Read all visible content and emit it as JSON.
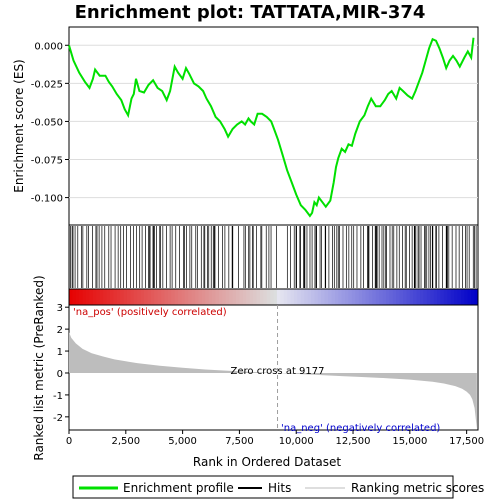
{
  "chart_data": {
    "type": "line",
    "title": "Enrichment plot: TATTATA,MIR-374",
    "xlabel": "Rank in Ordered Dataset",
    "ylabel_top": "Enrichment score (ES)",
    "ylabel_bottom": "Ranked list metric (PreRanked)",
    "xlim": [
      0,
      18000
    ],
    "x_ticks": [
      0,
      2500,
      5000,
      7500,
      10000,
      12500,
      15000,
      17500
    ],
    "x_tick_labels": [
      "0",
      "2,500",
      "5,000",
      "7,500",
      "10,000",
      "12,500",
      "15,000",
      "17,500"
    ],
    "es_ylim": [
      -0.118,
      0.012
    ],
    "es_ticks": [
      0.0,
      -0.025,
      -0.05,
      -0.075,
      -0.1
    ],
    "es_tick_labels": [
      "0.000",
      "-0.025",
      "-0.050",
      "-0.075",
      "-0.100"
    ],
    "metric_ylim": [
      -2.6,
      3.1
    ],
    "metric_ticks": [
      3,
      2,
      1,
      0,
      -1,
      -2
    ],
    "metric_tick_labels": [
      "3",
      "2",
      "1",
      "0",
      "-1",
      "-2"
    ],
    "enrichment_profile": {
      "x": [
        0,
        200,
        450,
        700,
        900,
        1050,
        1150,
        1350,
        1600,
        1750,
        1900,
        2100,
        2300,
        2450,
        2600,
        2750,
        2850,
        2950,
        3100,
        3300,
        3500,
        3700,
        3900,
        4100,
        4300,
        4450,
        4550,
        4650,
        4800,
        5000,
        5150,
        5300,
        5500,
        5700,
        5900,
        6050,
        6250,
        6450,
        6650,
        6850,
        7000,
        7200,
        7400,
        7600,
        7750,
        7900,
        8000,
        8150,
        8300,
        8500,
        8700,
        8900,
        9000,
        9200,
        9400,
        9600,
        9800,
        10000,
        10200,
        10400,
        10600,
        10700,
        10800,
        10900,
        11000,
        11150,
        11300,
        11500,
        11650,
        11750,
        11850,
        12000,
        12150,
        12300,
        12450,
        12600,
        12800,
        13000,
        13150,
        13300,
        13500,
        13700,
        13900,
        14050,
        14200,
        14400,
        14550,
        14700,
        14900,
        15100,
        15250,
        15400,
        15550,
        15700,
        15850,
        16000,
        16150,
        16300,
        16450,
        16600,
        16750,
        16900,
        17050,
        17200,
        17400,
        17550,
        17700,
        17800
      ],
      "y": [
        0.0,
        -0.01,
        -0.018,
        -0.024,
        -0.028,
        -0.022,
        -0.016,
        -0.02,
        -0.02,
        -0.024,
        -0.027,
        -0.032,
        -0.036,
        -0.042,
        -0.046,
        -0.035,
        -0.032,
        -0.022,
        -0.03,
        -0.031,
        -0.026,
        -0.023,
        -0.028,
        -0.03,
        -0.036,
        -0.03,
        -0.022,
        -0.014,
        -0.018,
        -0.022,
        -0.015,
        -0.019,
        -0.025,
        -0.027,
        -0.03,
        -0.035,
        -0.04,
        -0.047,
        -0.05,
        -0.055,
        -0.06,
        -0.055,
        -0.052,
        -0.05,
        -0.052,
        -0.048,
        -0.05,
        -0.052,
        -0.045,
        -0.045,
        -0.047,
        -0.05,
        -0.054,
        -0.062,
        -0.072,
        -0.082,
        -0.09,
        -0.098,
        -0.105,
        -0.108,
        -0.112,
        -0.11,
        -0.103,
        -0.105,
        -0.1,
        -0.103,
        -0.106,
        -0.102,
        -0.09,
        -0.08,
        -0.074,
        -0.068,
        -0.07,
        -0.065,
        -0.066,
        -0.058,
        -0.05,
        -0.046,
        -0.04,
        -0.035,
        -0.04,
        -0.04,
        -0.036,
        -0.032,
        -0.03,
        -0.035,
        -0.028,
        -0.03,
        -0.033,
        -0.035,
        -0.03,
        -0.024,
        -0.018,
        -0.01,
        -0.002,
        0.004,
        0.003,
        -0.002,
        -0.008,
        -0.015,
        -0.01,
        -0.007,
        -0.01,
        -0.014,
        -0.008,
        -0.004,
        -0.008,
        0.005
      ]
    },
    "hits_note": "Vertical hit ticks at ranks of gene-set members",
    "metric_curve": {
      "x": [
        0,
        100,
        300,
        600,
        1000,
        1500,
        2000,
        3000,
        4000,
        5000,
        6000,
        7000,
        8000,
        9177,
        10000,
        11000,
        12000,
        13000,
        14000,
        15000,
        16000,
        16500,
        17000,
        17300,
        17500,
        17650,
        17750,
        17850,
        17950
      ],
      "y": [
        1.85,
        1.6,
        1.35,
        1.1,
        0.9,
        0.75,
        0.62,
        0.45,
        0.33,
        0.24,
        0.16,
        0.1,
        0.05,
        0.0,
        -0.04,
        -0.09,
        -0.14,
        -0.19,
        -0.24,
        -0.3,
        -0.4,
        -0.48,
        -0.6,
        -0.72,
        -0.85,
        -1.0,
        -1.2,
        -1.6,
        -2.55
      ]
    },
    "zero_cross_rank": 9177,
    "annotations": {
      "pos": "'na_pos' (positively correlated)",
      "neg": "'na_neg' (negatively correlated)",
      "zero": "Zero cross at 9177"
    },
    "legend": {
      "items": [
        "Enrichment profile",
        "Hits",
        "Ranking metric scores"
      ]
    },
    "colors": {
      "profile": "#00e000",
      "hits": "#000000",
      "metric_fill": "#bdbdbd",
      "pos_text": "#cc0000",
      "neg_text": "#0000cc",
      "bar_pos": "#e00000",
      "bar_neg": "#0000e0"
    }
  }
}
